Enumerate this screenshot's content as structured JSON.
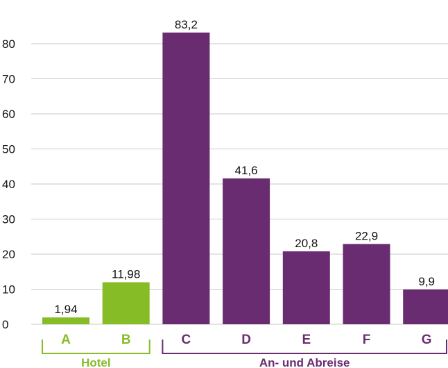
{
  "chart_data": {
    "type": "bar",
    "categories": [
      "A",
      "B",
      "C",
      "D",
      "E",
      "F",
      "G"
    ],
    "values": [
      1.94,
      11.98,
      83.2,
      41.6,
      20.8,
      22.9,
      9.9
    ],
    "value_labels": [
      "1,94",
      "11,98",
      "83,2",
      "41,6",
      "20,8",
      "22,9",
      "9,9"
    ],
    "yticks": [
      0,
      10,
      20,
      30,
      40,
      50,
      60,
      70,
      80
    ],
    "ylim": [
      0,
      85
    ],
    "grid": true,
    "colors": {
      "hotel": "#86BC25",
      "travel": "#6A2C70",
      "grid": "#c8c8c8"
    },
    "groups": [
      {
        "label": "Hotel",
        "categories": [
          "A",
          "B"
        ],
        "color": "#86BC25"
      },
      {
        "label": "An- und Abreise",
        "categories": [
          "C",
          "D",
          "E",
          "F",
          "G"
        ],
        "color": "#6A2C70"
      }
    ]
  }
}
